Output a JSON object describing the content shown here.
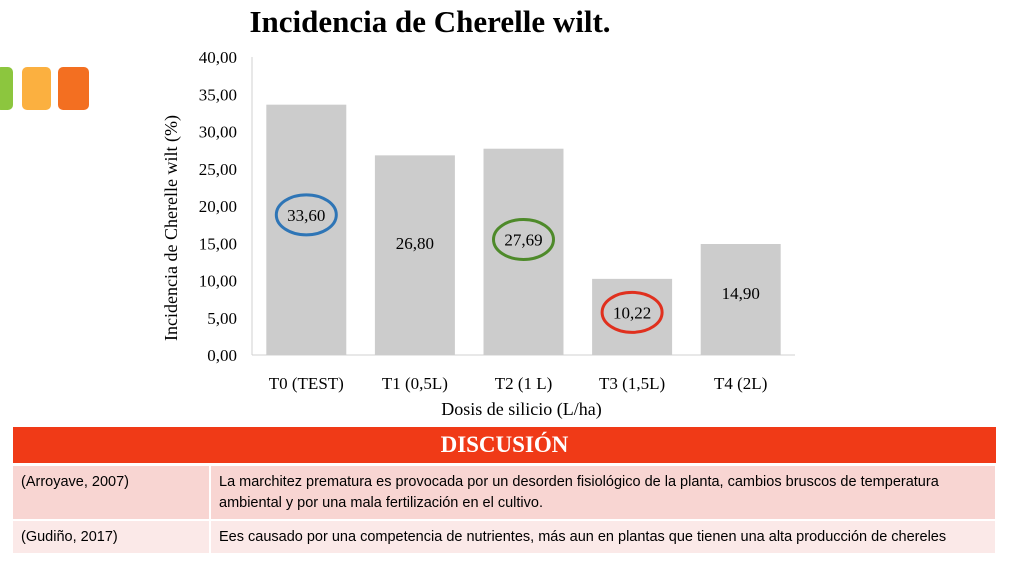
{
  "chart_data": {
    "type": "bar",
    "title": "Incidencia de Cherelle wilt.",
    "xlabel": "Dosis de silicio (L/ha)",
    "ylabel": "Incidencia de Cherelle wilt (%)",
    "ylim": [
      0,
      40
    ],
    "yticks": [
      "0,00",
      "5,00",
      "10,00",
      "15,00",
      "20,00",
      "25,00",
      "30,00",
      "35,00",
      "40,00"
    ],
    "categories": [
      "T0 (TEST)",
      "T1 (0,5L)",
      "T2 (1 L)",
      "T3 (1,5L)",
      "T4 (2L)"
    ],
    "values": [
      33.6,
      26.8,
      27.69,
      10.22,
      14.9
    ],
    "data_labels": [
      "33,60",
      "26,80",
      "27,69",
      "10,22",
      "14,90"
    ],
    "bar_color": "#cccccc",
    "highlights": [
      {
        "index": 0,
        "color": "#2e75b6"
      },
      {
        "index": 2,
        "color": "#4e8a2a"
      },
      {
        "index": 3,
        "color": "#e0301e"
      }
    ],
    "grid": false
  },
  "table": {
    "header": "DISCUSIÓN",
    "rows": [
      {
        "ref": "(Arroyave, 2007)",
        "text": "La marchitez prematura es provocada por un desorden fisiológico de la planta, cambios bruscos de temperatura ambiental y por una mala fertilización en el cultivo."
      },
      {
        "ref": "(Gudiño, 2017)",
        "text": "Ees causado por una competencia de nutrientes, más aun en plantas que tienen una alta producción de chereles"
      }
    ]
  },
  "colors": {
    "accent_red": "#f03a17",
    "deco_green": "#8cc63e",
    "deco_yellow": "#fbb040",
    "deco_orange": "#f36f21"
  }
}
